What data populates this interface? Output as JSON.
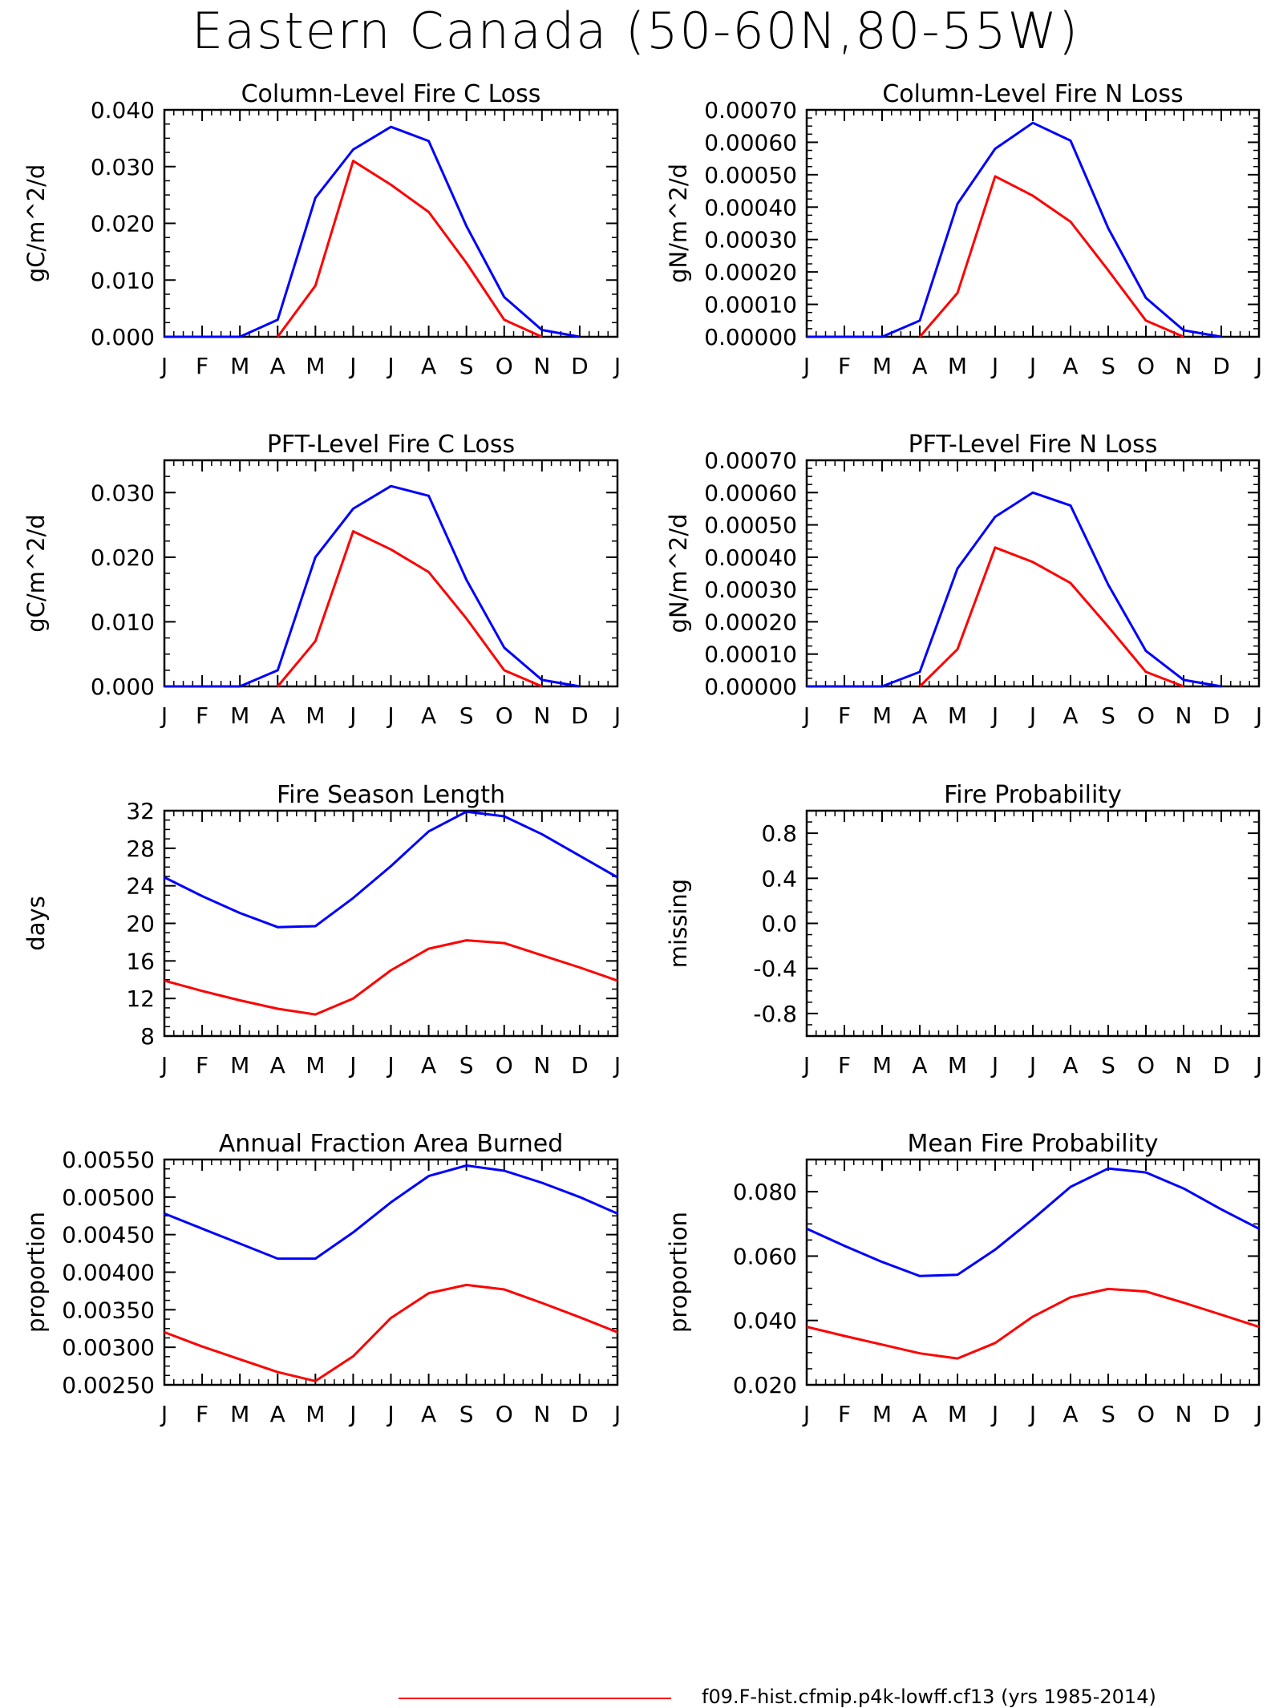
{
  "figure_title": "Eastern Canada (50-60N,80-55W)",
  "colors": {
    "series_a": "#0000ff",
    "series_b": "#ff0000",
    "axis": "#000000"
  },
  "legend": [
    {
      "label": "f09.F-hist.cfmip.p4k-lowff.cf13 (yrs 1985-2014)",
      "color": "#ff0000"
    }
  ],
  "chart_data": [
    {
      "id": "col-fire-c",
      "type": "line",
      "title": "Column-Level Fire C Loss",
      "ylabel": "gC/m^2/d",
      "categories": [
        "J",
        "F",
        "M",
        "A",
        "M",
        "J",
        "J",
        "A",
        "S",
        "O",
        "N",
        "D",
        "J"
      ],
      "ylim": [
        0,
        0.04
      ],
      "yticks": [
        "0.000",
        "0.010",
        "0.020",
        "0.030",
        "0.040"
      ],
      "series": [
        {
          "color": "#0000ff",
          "values": [
            0,
            0,
            0,
            0.003,
            0.0245,
            0.033,
            0.037,
            0.0345,
            0.0195,
            0.007,
            0.0012,
            0,
            null
          ]
        },
        {
          "color": "#ff0000",
          "values": [
            null,
            null,
            null,
            0,
            0.009,
            0.031,
            0.0268,
            0.022,
            0.013,
            0.003,
            0,
            null,
            null
          ]
        }
      ]
    },
    {
      "id": "col-fire-n",
      "type": "line",
      "title": "Column-Level Fire N Loss",
      "ylabel": "gN/m^2/d",
      "categories": [
        "J",
        "F",
        "M",
        "A",
        "M",
        "J",
        "J",
        "A",
        "S",
        "O",
        "N",
        "D",
        "J"
      ],
      "ylim": [
        0,
        0.0007
      ],
      "yticks": [
        "0.00000",
        "0.00010",
        "0.00020",
        "0.00030",
        "0.00040",
        "0.00050",
        "0.00060",
        "0.00070"
      ],
      "series": [
        {
          "color": "#0000ff",
          "values": [
            0,
            0,
            0,
            5e-05,
            0.00041,
            0.00058,
            0.00066,
            0.000605,
            0.000335,
            0.00012,
            2e-05,
            0,
            null
          ]
        },
        {
          "color": "#ff0000",
          "values": [
            null,
            null,
            null,
            0,
            0.000135,
            0.000495,
            0.000435,
            0.000355,
            0.000205,
            5e-05,
            0,
            null,
            null
          ]
        }
      ]
    },
    {
      "id": "pft-fire-c",
      "type": "line",
      "title": "PFT-Level Fire C Loss",
      "ylabel": "gC/m^2/d",
      "categories": [
        "J",
        "F",
        "M",
        "A",
        "M",
        "J",
        "J",
        "A",
        "S",
        "O",
        "N",
        "D",
        "J"
      ],
      "ylim": [
        0,
        0.035
      ],
      "yticks": [
        "0.000",
        "0.010",
        "0.020",
        "0.030"
      ],
      "series": [
        {
          "color": "#0000ff",
          "values": [
            0,
            0,
            0,
            0.0025,
            0.02,
            0.0275,
            0.031,
            0.0295,
            0.0165,
            0.006,
            0.001,
            0,
            null
          ]
        },
        {
          "color": "#ff0000",
          "values": [
            null,
            null,
            null,
            0,
            0.007,
            0.024,
            0.0212,
            0.0177,
            0.0105,
            0.0025,
            0,
            null,
            null
          ]
        }
      ]
    },
    {
      "id": "pft-fire-n",
      "type": "line",
      "title": "PFT-Level Fire N Loss",
      "ylabel": "gN/m^2/d",
      "categories": [
        "J",
        "F",
        "M",
        "A",
        "M",
        "J",
        "J",
        "A",
        "S",
        "O",
        "N",
        "D",
        "J"
      ],
      "ylim": [
        0,
        0.0007
      ],
      "yticks": [
        "0.00000",
        "0.00010",
        "0.00020",
        "0.00030",
        "0.00040",
        "0.00050",
        "0.00060",
        "0.00070"
      ],
      "series": [
        {
          "color": "#0000ff",
          "values": [
            0,
            0,
            0,
            4.5e-05,
            0.000365,
            0.000525,
            0.0006,
            0.00056,
            0.000315,
            0.00011,
            2e-05,
            0,
            null
          ]
        },
        {
          "color": "#ff0000",
          "values": [
            null,
            null,
            null,
            0,
            0.000115,
            0.00043,
            0.000385,
            0.00032,
            0.000185,
            4.5e-05,
            0,
            null,
            null
          ]
        }
      ]
    },
    {
      "id": "fire-season-length",
      "type": "line",
      "title": "Fire Season Length",
      "ylabel": "days",
      "categories": [
        "J",
        "F",
        "M",
        "A",
        "M",
        "J",
        "J",
        "A",
        "S",
        "O",
        "N",
        "D",
        "J"
      ],
      "ylim": [
        8,
        32
      ],
      "yticks": [
        "8",
        "12",
        "16",
        "20",
        "24",
        "28",
        "32"
      ],
      "series": [
        {
          "color": "#0000ff",
          "values": [
            24.9,
            22.9,
            21.1,
            19.6,
            19.7,
            22.7,
            26.1,
            29.8,
            31.9,
            31.4,
            29.5,
            27.2,
            24.9
          ]
        },
        {
          "color": "#ff0000",
          "values": [
            13.9,
            12.8,
            11.8,
            10.9,
            10.3,
            12.0,
            15.0,
            17.3,
            18.2,
            17.9,
            16.6,
            15.3,
            13.9
          ]
        }
      ]
    },
    {
      "id": "fire-probability",
      "type": "line",
      "title": "Fire Probability",
      "ylabel": "missing",
      "categories": [
        "J",
        "F",
        "M",
        "A",
        "M",
        "J",
        "J",
        "A",
        "S",
        "O",
        "N",
        "D",
        "J"
      ],
      "ylim": [
        -1.0,
        1.0
      ],
      "yticks": [
        "-0.8",
        "-0.4",
        "0.0",
        "0.4",
        "0.8"
      ],
      "ytick_values": [
        -0.8,
        -0.4,
        0.0,
        0.4,
        0.8
      ],
      "series": []
    },
    {
      "id": "annual-fraction-burned",
      "type": "line",
      "title": "Annual Fraction Area Burned",
      "ylabel": "proportion",
      "categories": [
        "J",
        "F",
        "M",
        "A",
        "M",
        "J",
        "J",
        "A",
        "S",
        "O",
        "N",
        "D",
        "J"
      ],
      "ylim": [
        0.0025,
        0.0055
      ],
      "yticks": [
        "0.00250",
        "0.00300",
        "0.00350",
        "0.00400",
        "0.00450",
        "0.00500",
        "0.00550"
      ],
      "series": [
        {
          "color": "#0000ff",
          "values": [
            0.00478,
            0.00458,
            0.00438,
            0.00418,
            0.00418,
            0.00453,
            0.00493,
            0.00528,
            0.00542,
            0.00535,
            0.00519,
            0.005,
            0.00478
          ]
        },
        {
          "color": "#ff0000",
          "values": [
            0.0032,
            0.00301,
            0.00284,
            0.00267,
            0.00255,
            0.00288,
            0.00339,
            0.00372,
            0.00383,
            0.00377,
            0.00359,
            0.0034,
            0.0032
          ]
        }
      ]
    },
    {
      "id": "mean-fire-probability",
      "type": "line",
      "title": "Mean Fire Probability",
      "ylabel": "proportion",
      "categories": [
        "J",
        "F",
        "M",
        "A",
        "M",
        "J",
        "J",
        "A",
        "S",
        "O",
        "N",
        "D",
        "J"
      ],
      "ylim": [
        0.02,
        0.09
      ],
      "yticks": [
        "0.020",
        "0.040",
        "0.060",
        "0.080"
      ],
      "ytick_values": [
        0.02,
        0.04,
        0.06,
        0.08
      ],
      "series": [
        {
          "color": "#0000ff",
          "values": [
            0.0685,
            0.0632,
            0.0582,
            0.0538,
            0.0542,
            0.062,
            0.0715,
            0.0815,
            0.0872,
            0.086,
            0.081,
            0.0745,
            0.0685
          ]
        },
        {
          "color": "#ff0000",
          "values": [
            0.038,
            0.0352,
            0.0325,
            0.0298,
            0.0282,
            0.033,
            0.0412,
            0.0472,
            0.0498,
            0.049,
            0.0455,
            0.0418,
            0.038
          ]
        }
      ]
    }
  ]
}
